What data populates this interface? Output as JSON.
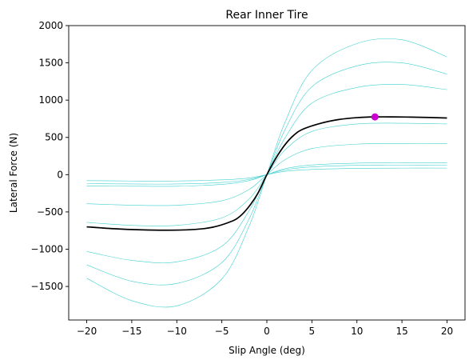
{
  "chart_data": {
    "type": "line",
    "title": "Rear Inner Tire",
    "xlabel": "Slip Angle (deg)",
    "ylabel": "Lateral Force (N)",
    "xlim": [
      -22,
      22
    ],
    "ylim": [
      -1950,
      2000
    ],
    "xticks": [
      -20,
      -15,
      -10,
      -5,
      0,
      5,
      10,
      15,
      20
    ],
    "xtick_labels": [
      "−20",
      "−15",
      "−10",
      "−5",
      "0",
      "5",
      "10",
      "15",
      "20"
    ],
    "yticks": [
      -1500,
      -1000,
      -500,
      0,
      500,
      1000,
      1500,
      2000
    ],
    "ytick_labels": [
      "−1500",
      "−1000",
      "−500",
      "0",
      "500",
      "1000",
      "1500",
      "2000"
    ],
    "grid": false,
    "colors": {
      "background_series": "#40d0d0",
      "highlight_series": "#000000",
      "peak_marker": "#cc00cc"
    },
    "background_series": [
      {
        "x": [
          -20,
          -15,
          -10,
          -5,
          -2,
          0,
          2,
          5,
          10,
          15,
          20
        ],
        "y": [
          -1390,
          -1690,
          -1760,
          -1400,
          -700,
          0,
          700,
          1400,
          1760,
          1810,
          1580
        ]
      },
      {
        "x": [
          -20,
          -15,
          -10,
          -5,
          -2,
          0,
          2,
          5,
          10,
          15,
          20
        ],
        "y": [
          -1210,
          -1430,
          -1460,
          -1180,
          -600,
          0,
          600,
          1180,
          1460,
          1500,
          1350
        ]
      },
      {
        "x": [
          -20,
          -15,
          -10,
          -5,
          -2,
          0,
          2,
          5,
          10,
          15,
          20
        ],
        "y": [
          -1030,
          -1150,
          -1170,
          -960,
          -490,
          0,
          490,
          960,
          1170,
          1210,
          1140
        ]
      },
      {
        "x": [
          -20,
          -15,
          -10,
          -5,
          -2,
          0,
          2,
          5,
          10,
          15,
          20
        ],
        "y": [
          -640,
          -680,
          -680,
          -580,
          -330,
          0,
          330,
          580,
          680,
          690,
          680
        ]
      },
      {
        "x": [
          -20,
          -15,
          -10,
          -5,
          -2,
          0,
          2,
          5,
          10,
          15,
          20
        ],
        "y": [
          -390,
          -410,
          -410,
          -350,
          -200,
          0,
          200,
          350,
          410,
          415,
          415
        ]
      },
      {
        "x": [
          -20,
          -15,
          -10,
          -5,
          -2,
          0,
          2,
          5,
          10,
          15,
          20
        ],
        "y": [
          -150,
          -155,
          -155,
          -130,
          -80,
          0,
          80,
          130,
          155,
          158,
          158
        ]
      },
      {
        "x": [
          -20,
          -15,
          -10,
          -5,
          -2,
          0,
          2,
          5,
          10,
          15,
          20
        ],
        "y": [
          -120,
          -125,
          -125,
          -105,
          -65,
          0,
          65,
          105,
          125,
          127,
          127
        ]
      },
      {
        "x": [
          -20,
          -15,
          -10,
          -5,
          -2,
          0,
          2,
          5,
          10,
          15,
          20
        ],
        "y": [
          -80,
          -85,
          -85,
          -70,
          -45,
          0,
          45,
          70,
          85,
          88,
          88
        ]
      }
    ],
    "highlight_series": {
      "x": [
        -20,
        -17,
        -14,
        -11,
        -8,
        -6,
        -4,
        -3,
        -2,
        -1,
        0,
        1,
        2,
        3,
        4,
        6,
        8,
        10,
        12,
        14,
        17,
        20
      ],
      "y": [
        -700,
        -725,
        -740,
        -745,
        -735,
        -705,
        -630,
        -560,
        -430,
        -250,
        0,
        220,
        400,
        530,
        610,
        690,
        740,
        765,
        775,
        775,
        770,
        760
      ]
    },
    "peak_marker": {
      "x": 12,
      "y": 775
    }
  }
}
